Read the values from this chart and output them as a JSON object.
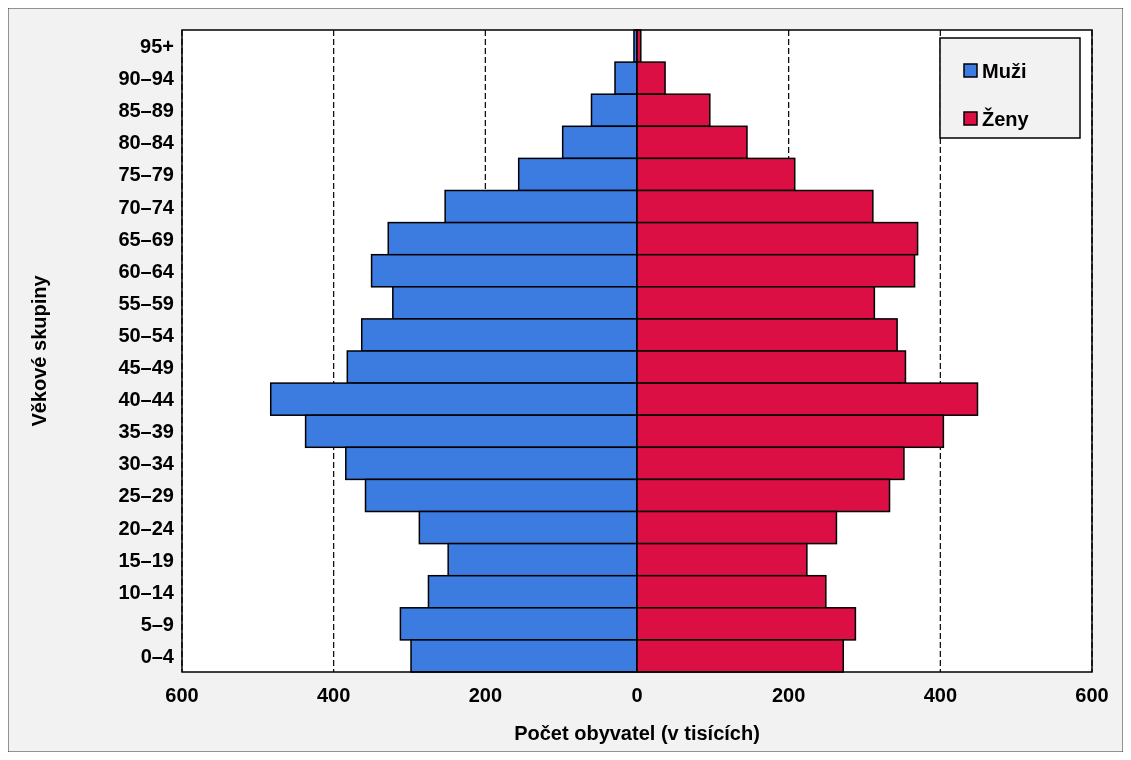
{
  "chart_data": {
    "type": "bar",
    "orientation": "horizontal",
    "stacked": true,
    "xlabel": "Počet obyvatel (v tisících)",
    "ylabel": "Věkové skupiny",
    "categories": [
      "95+",
      "90–94",
      "85–89",
      "80–84",
      "75–79",
      "70–74",
      "65–69",
      "60–64",
      "55–59",
      "50–54",
      "45–49",
      "40–44",
      "35–39",
      "30–34",
      "25–29",
      "20–24",
      "15–19",
      "10–14",
      "5–9",
      "0–4"
    ],
    "series": [
      {
        "name": "Muži",
        "color": "#3c7be0",
        "values": [
          -4,
          -29,
          -60,
          -98,
          -156,
          -253,
          -328,
          -350,
          -322,
          -363,
          -382,
          -483,
          -437,
          -384,
          -358,
          -287,
          -249,
          -275,
          -312,
          -298
        ]
      },
      {
        "name": "Ženy",
        "color": "#dc0f45",
        "values": [
          5,
          37,
          96,
          145,
          208,
          311,
          370,
          366,
          313,
          343,
          354,
          449,
          404,
          352,
          333,
          263,
          224,
          249,
          288,
          272
        ]
      }
    ],
    "xlim": [
      -600,
      600
    ],
    "xticks": [
      {
        "value": -600,
        "label": "600"
      },
      {
        "value": -400,
        "label": "400"
      },
      {
        "value": -200,
        "label": "200"
      },
      0,
      200,
      400,
      600
    ],
    "grid": "x",
    "legend": "top right"
  }
}
